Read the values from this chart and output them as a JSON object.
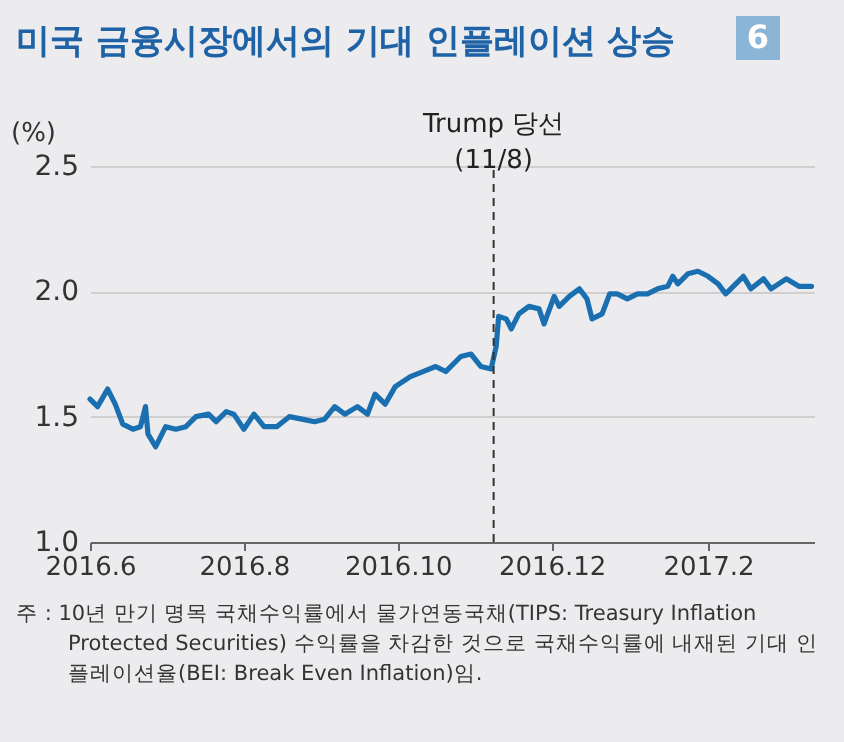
{
  "chart_data": {
    "type": "line",
    "title": "미국 금융시장에서의 기대 인플레이션 상승",
    "ylabel": "(%)",
    "annotations": [
      "6",
      "주 : 10년 만기 명목 국채수익률에서 물가연동국채(TIPS: Treasury Inflation Protected Securities) 수익률을 차감한 것으로 국채수익률에 내재된 기대 인플레이션율(BEI: Break Even Inflation)임."
    ],
    "x": [
      "2016-06-01",
      "2016-06-04",
      "2016-06-08",
      "2016-06-11",
      "2016-06-14",
      "2016-06-18",
      "2016-06-21",
      "2016-06-23",
      "2016-06-24",
      "2016-06-27",
      "2016-07-01",
      "2016-07-05",
      "2016-07-09",
      "2016-07-13",
      "2016-07-18",
      "2016-07-21",
      "2016-07-25",
      "2016-07-28",
      "2016-08-01",
      "2016-08-05",
      "2016-08-09",
      "2016-08-14",
      "2016-08-19",
      "2016-08-24",
      "2016-08-29",
      "2016-09-02",
      "2016-09-06",
      "2016-09-10",
      "2016-09-15",
      "2016-09-19",
      "2016-09-22",
      "2016-09-26",
      "2016-09-30",
      "2016-10-06",
      "2016-10-11",
      "2016-10-16",
      "2016-10-20",
      "2016-10-26",
      "2016-10-30",
      "2016-11-03",
      "2016-11-07",
      "2016-11-09",
      "2016-11-10",
      "2016-11-13",
      "2016-11-15",
      "2016-11-18",
      "2016-11-22",
      "2016-11-26",
      "2016-11-28",
      "2016-12-02",
      "2016-12-04",
      "2016-12-08",
      "2016-12-12",
      "2016-12-15",
      "2016-12-17",
      "2016-12-21",
      "2016-12-24",
      "2016-12-27",
      "2016-12-31",
      "2017-01-04",
      "2017-01-08",
      "2017-01-12",
      "2017-01-16",
      "2017-01-18",
      "2017-01-20",
      "2017-01-24",
      "2017-01-28",
      "2017-02-01",
      "2017-02-05",
      "2017-02-08",
      "2017-02-11",
      "2017-02-15",
      "2017-02-18",
      "2017-02-23",
      "2017-02-26",
      "2017-03-04",
      "2017-03-09",
      "2017-03-14"
    ],
    "series": [
      {
        "color": "#1a6fb0",
        "values": [
          1.57,
          1.54,
          1.61,
          1.55,
          1.47,
          1.45,
          1.46,
          1.54,
          1.43,
          1.38,
          1.46,
          1.45,
          1.46,
          1.5,
          1.51,
          1.48,
          1.52,
          1.51,
          1.45,
          1.51,
          1.46,
          1.46,
          1.5,
          1.49,
          1.48,
          1.49,
          1.54,
          1.51,
          1.54,
          1.51,
          1.59,
          1.55,
          1.62,
          1.66,
          1.68,
          1.7,
          1.68,
          1.74,
          1.75,
          1.7,
          1.69,
          1.78,
          1.9,
          1.89,
          1.85,
          1.91,
          1.94,
          1.93,
          1.87,
          1.98,
          1.94,
          1.98,
          2.01,
          1.97,
          1.89,
          1.91,
          1.99,
          1.99,
          1.97,
          1.99,
          1.99,
          2.01,
          2.02,
          2.06,
          2.03,
          2.07,
          2.08,
          2.06,
          2.03,
          1.99,
          2.02,
          2.06,
          2.01,
          2.05,
          2.01,
          2.05,
          2.02,
          2.02
        ]
      }
    ],
    "xlim": [
      "2016-06-01",
      "2017-03-15"
    ],
    "xticks": [
      {
        "value": "2016-06-01",
        "label": "2016.6"
      },
      {
        "value": "2016-08-01",
        "label": "2016.8"
      },
      {
        "value": "2016-10-01",
        "label": "2016.10"
      },
      {
        "value": "2016-12-01",
        "label": "2016.12"
      },
      {
        "value": "2017-02-01",
        "label": "2017.2"
      }
    ],
    "ylim": [
      1.0,
      2.5
    ],
    "yticks": [
      {
        "value": 1.0,
        "label": "1.0"
      },
      {
        "value": 1.5,
        "label": "1.5"
      },
      {
        "value": 2.0,
        "label": "2.0"
      },
      {
        "value": 2.5,
        "label": "2.5"
      }
    ],
    "grid": "y",
    "ref_lines": [
      {
        "axis": "x",
        "value": "2016-11-08",
        "label": "Trump 당선\n(11/8)",
        "line_style": "dashed",
        "color": "#333333"
      }
    ]
  }
}
